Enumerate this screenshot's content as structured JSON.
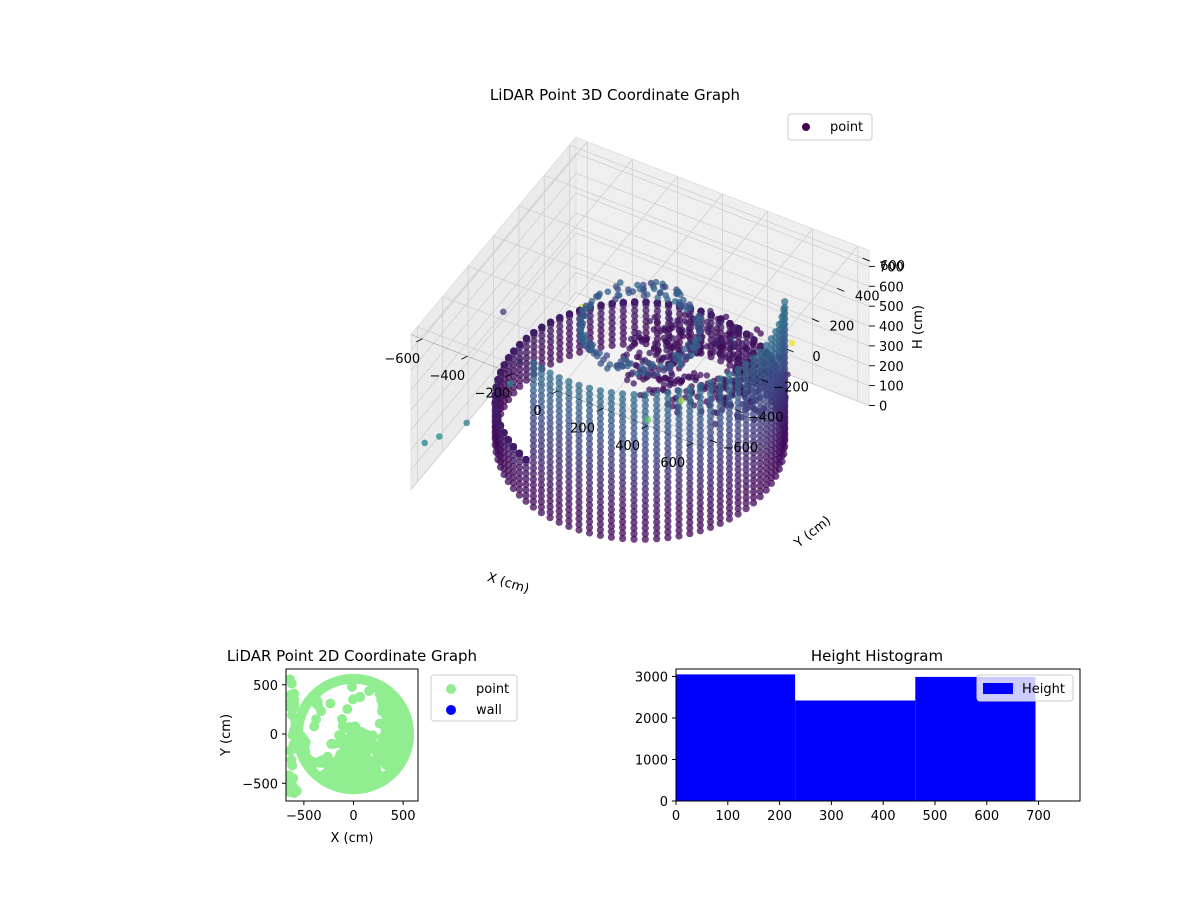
{
  "chart_data": [
    {
      "type": "scatter",
      "projection": "3d",
      "title": "LiDAR Point 3D Coordinate Graph",
      "xlabel": "X (cm)",
      "ylabel": "Y (cm)",
      "zlabel": "H (cm)",
      "xticks": [
        -600,
        -400,
        -200,
        0,
        200,
        400,
        600
      ],
      "yticks": [
        -600,
        -400,
        -200,
        0,
        200,
        400,
        600
      ],
      "zticks": [
        0,
        100,
        200,
        300,
        400,
        500,
        600,
        700
      ],
      "xlim": [
        -650,
        650
      ],
      "ylim": [
        -650,
        650
      ],
      "zlim": [
        780,
        0
      ],
      "grid": true,
      "legend": {
        "position": "upper right",
        "entries": [
          "point"
        ]
      },
      "colormap": "viridis",
      "series": [
        {
          "name": "point",
          "color": "#440154"
        }
      ]
    },
    {
      "type": "scatter",
      "title": "LiDAR Point 2D Coordinate Graph",
      "xlabel": "X (cm)",
      "ylabel": "Y (cm)",
      "xticks": [
        -500,
        0,
        500
      ],
      "yticks": [
        -500,
        0,
        500
      ],
      "xlim": [
        -680,
        650
      ],
      "ylim": [
        -680,
        660
      ],
      "legend": {
        "position": "outside right",
        "entries": [
          "point",
          "wall"
        ]
      },
      "series": [
        {
          "name": "point",
          "color": "#90ee90"
        },
        {
          "name": "wall",
          "color": "#0000ff",
          "values": []
        }
      ]
    },
    {
      "type": "bar",
      "subtype": "histogram",
      "title": "Height Histogram",
      "bins": [
        [
          0,
          230
        ],
        [
          230,
          462
        ],
        [
          462,
          694
        ]
      ],
      "values": [
        3050,
        2420,
        2990
      ],
      "xticks": [
        0,
        100,
        200,
        300,
        400,
        500,
        600,
        700
      ],
      "yticks": [
        0,
        1000,
        2000,
        3000
      ],
      "xlim": [
        0,
        780
      ],
      "ylim": [
        0,
        3180
      ],
      "legend": {
        "position": "upper right",
        "entries": [
          "Height"
        ]
      },
      "series": [
        {
          "name": "Height",
          "color": "#0000ff"
        }
      ]
    }
  ]
}
